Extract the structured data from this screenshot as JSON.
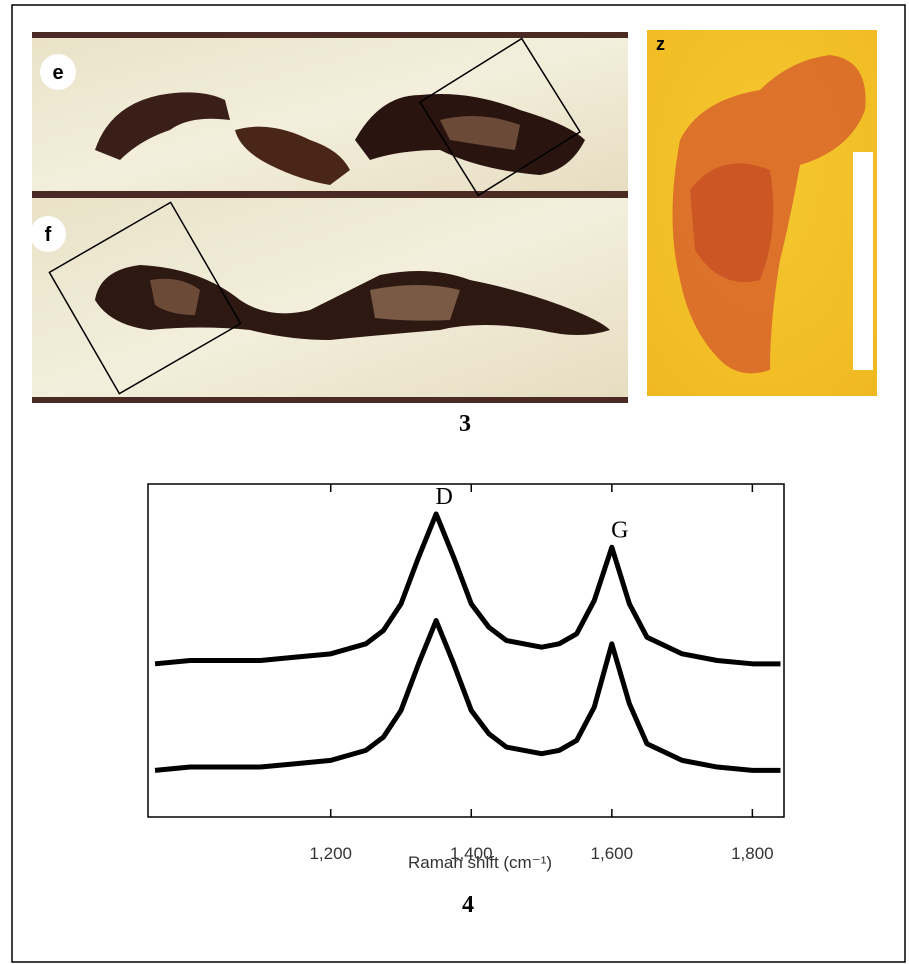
{
  "figure": {
    "panels": [
      {
        "label": "e"
      },
      {
        "label": "f"
      },
      {
        "label": "z"
      }
    ],
    "caption": "3"
  },
  "chart_data": {
    "type": "line",
    "x": [
      950,
      1000,
      1050,
      1100,
      1150,
      1200,
      1250,
      1275,
      1300,
      1325,
      1350,
      1375,
      1400,
      1425,
      1450,
      1500,
      1525,
      1550,
      1575,
      1600,
      1625,
      1650,
      1700,
      1750,
      1800,
      1840
    ],
    "series": [
      {
        "color": "#000000",
        "values": [
          46,
          47,
          47,
          47,
          48,
          49,
          52,
          56,
          64,
          78,
          91,
          78,
          64,
          57,
          53,
          51,
          52,
          55,
          65,
          81,
          64,
          54,
          49,
          47,
          46,
          46
        ]
      },
      {
        "color": "#000000",
        "values": [
          14,
          15,
          15,
          15,
          16,
          17,
          20,
          24,
          32,
          46,
          59,
          46,
          32,
          25,
          21,
          19,
          20,
          23,
          33,
          52,
          34,
          22,
          17,
          15,
          14,
          14
        ]
      }
    ],
    "xlim": [
      940,
      1845
    ],
    "ylim": [
      0,
      100
    ],
    "xticks": [
      {
        "value": 1200,
        "label": "1,200"
      },
      {
        "value": 1400,
        "label": "1,400"
      },
      {
        "value": 1600,
        "label": "1,600"
      },
      {
        "value": 1800,
        "label": "1,800"
      }
    ],
    "xlabel": "Raman shift (cm⁻¹)",
    "annotations": [
      {
        "text": "D",
        "x": 1350
      },
      {
        "text": "G",
        "x": 1600
      }
    ],
    "caption": "4"
  }
}
